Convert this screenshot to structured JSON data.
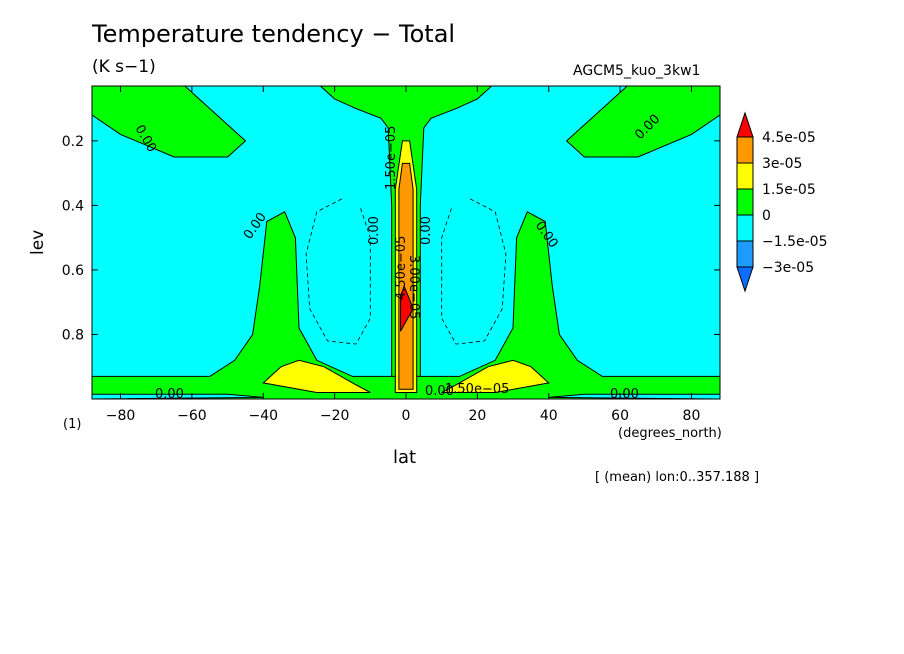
{
  "chart_data": {
    "type": "contour",
    "title": "Temperature tendency − Total",
    "units": "(K s−1)",
    "run_label": "AGCM5_kuo_3kw1",
    "xlabel": "lat",
    "xunit": "(degrees_north)",
    "ylabel": "lev",
    "panel_number": "(1)",
    "footnote": "[ (mean) lon:0..357.188 ]",
    "xlim": [
      -88,
      88
    ],
    "ylim": [
      0.03,
      1.0
    ],
    "y_inverted": true,
    "x_ticks": [
      -80,
      -60,
      -40,
      -20,
      0,
      20,
      40,
      60,
      80
    ],
    "x_tick_labels": [
      "−80",
      "−60",
      "−40",
      "−20",
      "0",
      "20",
      "40",
      "60",
      "80"
    ],
    "y_ticks": [
      0.2,
      0.4,
      0.6,
      0.8
    ],
    "y_tick_labels": [
      "0.2",
      "0.4",
      "0.6",
      "0.8"
    ],
    "colorbar": {
      "labels": [
        "4.5e-05",
        "3e-05",
        "1.5e-05",
        "0",
        "−1.5e-05",
        "−3e-05"
      ],
      "levels": [
        -4.5e-05,
        -3e-05,
        -1.5e-05,
        0,
        1.5e-05,
        3e-05,
        4.5e-05
      ],
      "colors": [
        "#0a6eff",
        "#1e9bff",
        "#00ffff",
        "#00ff00",
        "#ffff00",
        "#ff9900",
        "#ff0000"
      ]
    },
    "contour_labels": [
      "0.00",
      "0.00",
      "0.00",
      "0.00",
      "0.00",
      "0.00",
      "1.50e−05",
      "3.00e−05",
      "4.50e−05",
      "0.00",
      "0.00",
      "1.50e−05",
      "0.00"
    ],
    "regions": [
      {
        "name": "polar-south-upper",
        "level": 0,
        "pts": [
          [
            -88,
            0.03
          ],
          [
            -62,
            0.03
          ],
          [
            -55,
            0.1
          ],
          [
            -45,
            0.2
          ],
          [
            -50,
            0.25
          ],
          [
            -65,
            0.25
          ],
          [
            -80,
            0.18
          ],
          [
            -88,
            0.12
          ]
        ]
      },
      {
        "name": "polar-north-upper",
        "level": 0,
        "pts": [
          [
            88,
            0.03
          ],
          [
            62,
            0.03
          ],
          [
            55,
            0.1
          ],
          [
            45,
            0.2
          ],
          [
            50,
            0.25
          ],
          [
            65,
            0.25
          ],
          [
            80,
            0.18
          ],
          [
            88,
            0.12
          ]
        ]
      },
      {
        "name": "equatorial-upper-band",
        "level": 0,
        "pts": [
          [
            -24,
            0.03
          ],
          [
            24,
            0.03
          ],
          [
            20,
            0.07
          ],
          [
            14,
            0.1
          ],
          [
            7,
            0.13
          ],
          [
            5,
            0.16
          ],
          [
            4,
            0.4
          ],
          [
            4,
            0.97
          ],
          [
            -4,
            0.97
          ],
          [
            -4,
            0.4
          ],
          [
            -5,
            0.16
          ],
          [
            -7,
            0.13
          ],
          [
            -14,
            0.1
          ],
          [
            -20,
            0.07
          ]
        ]
      },
      {
        "name": "bottom-band",
        "level": 0,
        "pts": [
          [
            -88,
            0.93
          ],
          [
            -55,
            0.93
          ],
          [
            -48,
            0.88
          ],
          [
            -43,
            0.8
          ],
          [
            -41,
            0.65
          ],
          [
            -39,
            0.45
          ],
          [
            -34,
            0.42
          ],
          [
            -31,
            0.5
          ],
          [
            -30,
            0.78
          ],
          [
            -25,
            0.88
          ],
          [
            -15,
            0.93
          ],
          [
            -4,
            0.93
          ],
          [
            4,
            0.93
          ],
          [
            15,
            0.93
          ],
          [
            25,
            0.88
          ],
          [
            30,
            0.78
          ],
          [
            31,
            0.5
          ],
          [
            34,
            0.42
          ],
          [
            39,
            0.45
          ],
          [
            41,
            0.65
          ],
          [
            43,
            0.8
          ],
          [
            48,
            0.88
          ],
          [
            55,
            0.93
          ],
          [
            88,
            0.93
          ],
          [
            88,
            1.0
          ],
          [
            -88,
            1.0
          ]
        ]
      },
      {
        "name": "yellow-south",
        "level": 1.5e-05,
        "pts": [
          [
            -40,
            0.95
          ],
          [
            -35,
            0.9
          ],
          [
            -30,
            0.88
          ],
          [
            -23,
            0.9
          ],
          [
            -15,
            0.95
          ],
          [
            -10,
            0.98
          ],
          [
            -25,
            0.98
          ]
        ]
      },
      {
        "name": "yellow-north",
        "level": 1.5e-05,
        "pts": [
          [
            40,
            0.95
          ],
          [
            35,
            0.9
          ],
          [
            30,
            0.88
          ],
          [
            23,
            0.9
          ],
          [
            15,
            0.95
          ],
          [
            10,
            0.98
          ],
          [
            25,
            0.98
          ]
        ]
      },
      {
        "name": "yellow-column",
        "level": 1.5e-05,
        "pts": [
          [
            -3,
            0.98
          ],
          [
            -3,
            0.35
          ],
          [
            -1,
            0.2
          ],
          [
            1,
            0.2
          ],
          [
            3,
            0.35
          ],
          [
            3,
            0.98
          ]
        ]
      },
      {
        "name": "orange-column",
        "level": 3e-05,
        "pts": [
          [
            -2,
            0.97
          ],
          [
            -2,
            0.35
          ],
          [
            -1,
            0.27
          ],
          [
            1,
            0.27
          ],
          [
            2,
            0.35
          ],
          [
            2,
            0.97
          ]
        ]
      },
      {
        "name": "red-core",
        "level": 4.5e-05,
        "pts": [
          [
            -1.5,
            0.79
          ],
          [
            -1.5,
            0.68
          ],
          [
            -0.5,
            0.65
          ],
          [
            2,
            0.72
          ]
        ]
      },
      {
        "name": "blue-bottom-south",
        "level": -1.5e-05,
        "pts": [
          [
            -88,
            0.985
          ],
          [
            -50,
            0.985
          ],
          [
            -40,
            0.995
          ],
          [
            -88,
            1.0
          ]
        ]
      },
      {
        "name": "blue-bottom-north",
        "level": -1.5e-05,
        "pts": [
          [
            88,
            0.985
          ],
          [
            50,
            0.985
          ],
          [
            40,
            0.995
          ],
          [
            88,
            1.0
          ]
        ]
      }
    ],
    "dashed_contours": [
      {
        "pts": [
          [
            -18,
            0.38
          ],
          [
            -25,
            0.42
          ],
          [
            -28,
            0.55
          ],
          [
            -27,
            0.72
          ],
          [
            -22,
            0.82
          ],
          [
            -14,
            0.83
          ],
          [
            -10,
            0.75
          ],
          [
            -10,
            0.5
          ],
          [
            -13,
            0.4
          ]
        ]
      },
      {
        "pts": [
          [
            18,
            0.38
          ],
          [
            25,
            0.42
          ],
          [
            28,
            0.55
          ],
          [
            27,
            0.72
          ],
          [
            22,
            0.82
          ],
          [
            14,
            0.83
          ],
          [
            10,
            0.75
          ],
          [
            10,
            0.5
          ],
          [
            13,
            0.4
          ]
        ]
      }
    ]
  }
}
